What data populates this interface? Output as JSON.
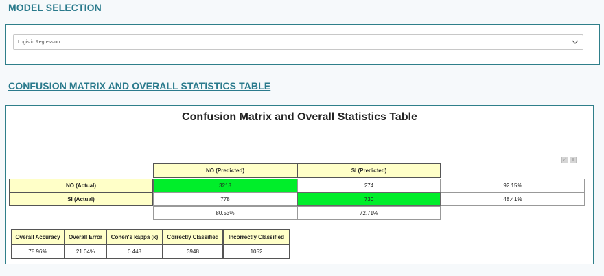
{
  "model_selection": {
    "title": "MODEL SELECTION",
    "selected": "Logistic Regression"
  },
  "confusion_section": {
    "title": "CONFUSION MATRIX AND OVERALL STATISTICS TABLE",
    "chart_title": "Confusion Matrix and Overall Statistics Table",
    "icons": [
      "expand-icon",
      "menu-icon"
    ]
  },
  "matrix": {
    "col_headers": [
      "NO (Predicted)",
      "SI (Predicted)"
    ],
    "rows": [
      {
        "label": "NO (Actual)",
        "values": [
          "3218",
          "274"
        ],
        "rate": "92.15%"
      },
      {
        "label": "SI (Actual)",
        "values": [
          "778",
          "730"
        ],
        "rate": "48.41%"
      }
    ],
    "col_rates": [
      "80.53%",
      "72.71%"
    ],
    "highlight_color": "#00ee2a",
    "header_color": "#ffffc8"
  },
  "stats": {
    "headers": [
      "Overall Accuracy",
      "Overall Error",
      "Cohen's kappa (κ)",
      "Correctly Classified",
      "Incorrectly Classified"
    ],
    "values": [
      "78.96%",
      "21.04%",
      "0.448",
      "3948",
      "1052"
    ]
  }
}
